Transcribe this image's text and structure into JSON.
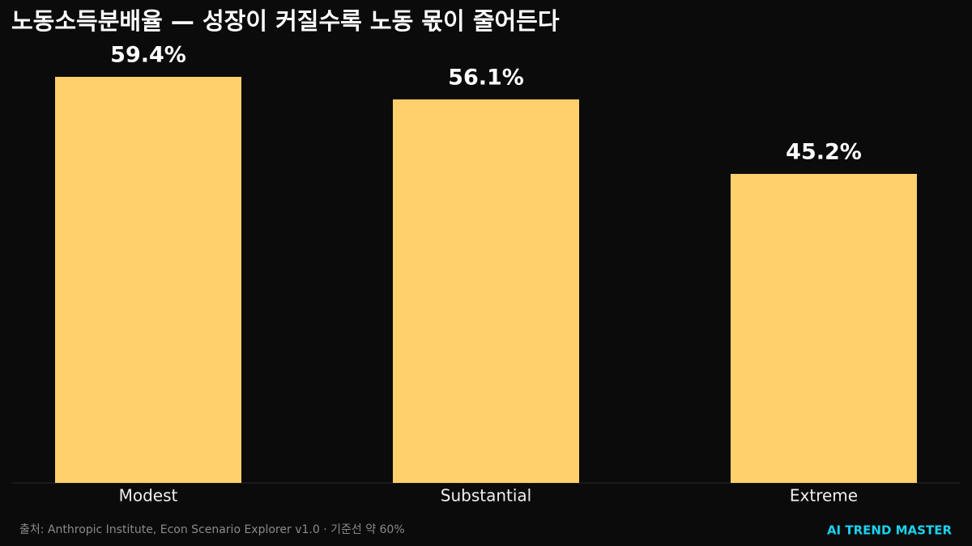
{
  "chart_data": {
    "type": "bar",
    "title": "노동소득분배율 — 성장이 커질수록 노동 몫이 줄어든다",
    "categories": [
      "Modest",
      "Substantial",
      "Extreme"
    ],
    "values": [
      59.4,
      56.1,
      45.2
    ],
    "value_labels": [
      "59.4%",
      "56.1%",
      "45.2%"
    ],
    "color": "#ffd06b",
    "ylim": [
      0,
      62
    ],
    "source": "출처: Anthropic Institute, Econ Scenario Explorer v1.0 · 기준선 약 60%",
    "brand": "AI TREND MASTER"
  }
}
